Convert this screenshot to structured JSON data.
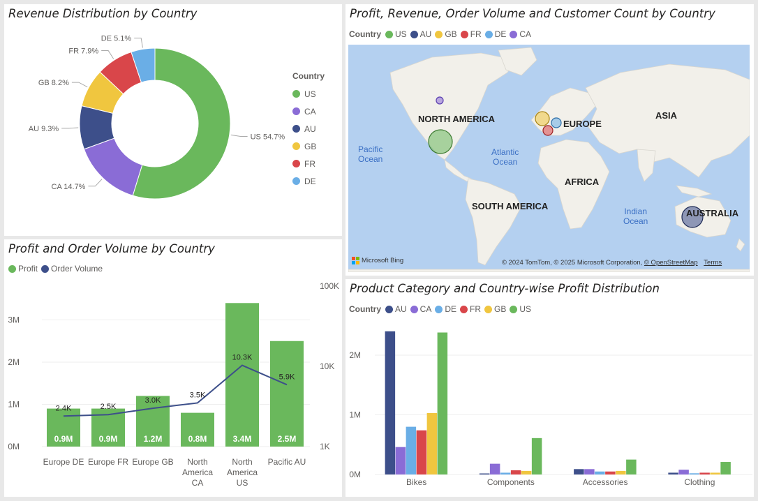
{
  "panels": {
    "donut": {
      "title": "Revenue Distribution by Country",
      "legend_title": "Country",
      "legend": [
        {
          "label": "US",
          "color": "#6ab85c"
        },
        {
          "label": "CA",
          "color": "#8a6cd6"
        },
        {
          "label": "AU",
          "color": "#3d4f8a"
        },
        {
          "label": "GB",
          "color": "#f0c63f"
        },
        {
          "label": "FR",
          "color": "#d9464a"
        },
        {
          "label": "DE",
          "color": "#6aaee6"
        }
      ]
    },
    "map": {
      "title": "Profit, Revenue, Order Volume and Customer Count by Country",
      "legend_title": "Country",
      "legend": [
        {
          "label": "US",
          "color": "#6ab85c"
        },
        {
          "label": "AU",
          "color": "#3d4f8a"
        },
        {
          "label": "GB",
          "color": "#f0c63f"
        },
        {
          "label": "FR",
          "color": "#d9464a"
        },
        {
          "label": "DE",
          "color": "#6aaee6"
        },
        {
          "label": "CA",
          "color": "#8a6cd6"
        }
      ],
      "regions": {
        "north_america": "NORTH AMERICA",
        "europe": "EUROPE",
        "asia": "ASIA",
        "africa": "AFRICA",
        "south_america": "SOUTH AMERICA",
        "australia": "AUSTRALIA"
      },
      "oceans": {
        "pacific_line1": "Pacific",
        "pacific_line2": "Ocean",
        "atlantic_line1": "Atlantic",
        "atlantic_line2": "Ocean",
        "indian_line1": "Indian",
        "indian_line2": "Ocean"
      },
      "bing_label": "Microsoft Bing",
      "copyright": "© 2024 TomTom, © 2025 Microsoft Corporation,",
      "osm_link": "© OpenStreetMap",
      "terms_link": "Terms"
    },
    "combo": {
      "title": "Profit and Order Volume by Country",
      "legend": [
        {
          "label": "Profit",
          "color": "#6ab85c"
        },
        {
          "label": "Order Volume",
          "color": "#3d4f8a"
        }
      ]
    },
    "clustered": {
      "title": "Product Category and Country-wise Profit Distribution",
      "legend_title": "Country",
      "legend": [
        {
          "label": "AU",
          "color": "#3d4f8a"
        },
        {
          "label": "CA",
          "color": "#8a6cd6"
        },
        {
          "label": "DE",
          "color": "#6aaee6"
        },
        {
          "label": "FR",
          "color": "#d9464a"
        },
        {
          "label": "GB",
          "color": "#f0c63f"
        },
        {
          "label": "US",
          "color": "#6ab85c"
        }
      ]
    }
  },
  "chart_data": [
    {
      "type": "pie",
      "title": "Revenue Distribution by Country",
      "categories": [
        "US",
        "CA",
        "AU",
        "GB",
        "FR",
        "DE"
      ],
      "values": [
        54.7,
        14.7,
        9.3,
        8.2,
        7.9,
        5.1
      ],
      "labels": [
        "US 54.7%",
        "CA 14.7%",
        "AU 9.3%",
        "GB 8.2%",
        "FR 7.9%",
        "DE 5.1%"
      ],
      "colors": [
        "#6ab85c",
        "#8a6cd6",
        "#3d4f8a",
        "#f0c63f",
        "#d9464a",
        "#6aaee6"
      ],
      "legend_title": "Country",
      "legend_position": "right"
    },
    {
      "type": "bar",
      "title": "Profit and Order Volume by Country",
      "categories": [
        [
          "Europe DE"
        ],
        [
          "Europe FR"
        ],
        [
          "Europe GB"
        ],
        [
          "North",
          "America",
          "CA"
        ],
        [
          "North",
          "America",
          "US"
        ],
        [
          "Pacific AU"
        ]
      ],
      "series": [
        {
          "name": "Profit",
          "type": "bar",
          "values": [
            0.9,
            0.9,
            1.2,
            0.8,
            3.4,
            2.5
          ],
          "labels": [
            "0.9M",
            "0.9M",
            "1.2M",
            "0.8M",
            "3.4M",
            "2.5M"
          ],
          "color": "#6ab85c"
        },
        {
          "name": "Order Volume",
          "type": "line",
          "axis": "secondary",
          "values": [
            2400,
            2500,
            3000,
            3500,
            10300,
            5900
          ],
          "labels": [
            "2.4K",
            "2.5K",
            "3.0K",
            "3.5K",
            "10.3K",
            "5.9K"
          ],
          "color": "#3d4f8a"
        }
      ],
      "ylim": [
        0,
        3.5
      ],
      "yticks": [
        "0M",
        "1M",
        "2M",
        "3M"
      ],
      "y2_scale": "log",
      "y2_ticks": [
        "1K",
        "10K",
        "100K"
      ],
      "legend_position": "top-left",
      "grid": true
    },
    {
      "type": "bar",
      "title": "Product Category and Country-wise Profit Distribution",
      "categories": [
        "Bikes",
        "Components",
        "Accessories",
        "Clothing"
      ],
      "series": [
        {
          "name": "AU",
          "values": [
            2.4,
            0.01,
            0.09,
            0.03
          ],
          "color": "#3d4f8a"
        },
        {
          "name": "CA",
          "values": [
            0.46,
            0.18,
            0.09,
            0.08
          ],
          "color": "#8a6cd6"
        },
        {
          "name": "DE",
          "values": [
            0.8,
            0.03,
            0.05,
            0.02
          ],
          "color": "#6aaee6"
        },
        {
          "name": "FR",
          "values": [
            0.74,
            0.07,
            0.05,
            0.03
          ],
          "color": "#d9464a"
        },
        {
          "name": "GB",
          "values": [
            1.03,
            0.06,
            0.06,
            0.03
          ],
          "color": "#f0c63f"
        },
        {
          "name": "US",
          "values": [
            2.38,
            0.61,
            0.25,
            0.21
          ],
          "color": "#6ab85c"
        }
      ],
      "yticks": [
        "0M",
        "1M",
        "2M"
      ],
      "ylim": [
        0,
        2.6
      ],
      "legend_title": "Country",
      "legend_position": "top-left",
      "grid": true
    }
  ]
}
